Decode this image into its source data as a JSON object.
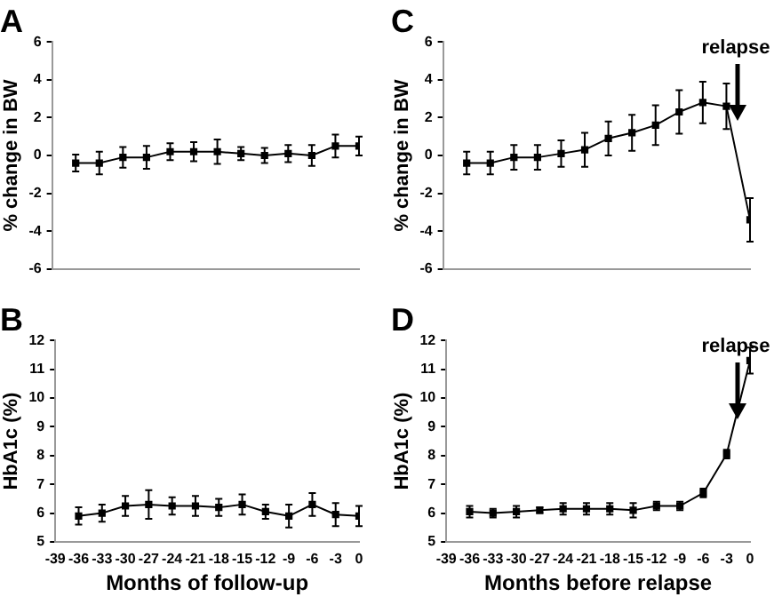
{
  "chart_data": [
    {
      "type": "line",
      "title": "A",
      "ylabel": "% change in BW",
      "x": [
        -36,
        -33,
        -30,
        -27,
        -24,
        -21,
        -18,
        -15,
        -12,
        -9,
        -6,
        -3,
        0
      ],
      "series": [
        {
          "color": "#000000",
          "values": [
            -0.4,
            -0.4,
            -0.1,
            -0.1,
            0.2,
            0.2,
            0.2,
            0.1,
            0,
            0.1,
            0,
            0.5,
            0.5
          ],
          "errors": [
            0.45,
            0.6,
            0.55,
            0.6,
            0.45,
            0.5,
            0.65,
            0.35,
            0.4,
            0.45,
            0.55,
            0.6,
            0.5
          ]
        }
      ],
      "xlim": [
        -39,
        0
      ],
      "xticks": [
        -39,
        -36,
        -33,
        -30,
        -27,
        -24,
        -21,
        -18,
        -15,
        -12,
        -9,
        -6,
        -3,
        0
      ],
      "ylim": [
        -6,
        6
      ],
      "yticks": [
        -6,
        -4,
        -2,
        0,
        2,
        4,
        6
      ],
      "tick_labels": "y",
      "marker": "square"
    },
    {
      "type": "line",
      "title": "C",
      "ylabel": "% change in BW",
      "x": [
        -36,
        -33,
        -30,
        -27,
        -24,
        -21,
        -18,
        -15,
        -12,
        -9,
        -6,
        -3,
        0
      ],
      "series": [
        {
          "color": "#000000",
          "values": [
            -0.4,
            -0.4,
            -0.1,
            -0.1,
            0.1,
            0.3,
            0.9,
            1.2,
            1.6,
            2.3,
            2.8,
            2.6,
            -3.4
          ],
          "errors": [
            0.6,
            0.6,
            0.65,
            0.65,
            0.7,
            0.9,
            0.9,
            0.95,
            1.05,
            1.15,
            1.1,
            1.2,
            1.15
          ]
        }
      ],
      "xlim": [
        -39,
        0
      ],
      "xticks": [
        -39,
        -36,
        -33,
        -30,
        -27,
        -24,
        -21,
        -18,
        -15,
        -12,
        -9,
        -6,
        -3,
        0
      ],
      "ylim": [
        -6,
        6
      ],
      "yticks": [
        -6,
        -4,
        -2,
        0,
        2,
        4,
        6
      ],
      "tick_labels": "y",
      "marker": "square",
      "annotations": [
        "relapse"
      ]
    },
    {
      "type": "line",
      "title": "B",
      "xlabel": "Months of follow-up",
      "ylabel": "HbA1c (%)",
      "x": [
        -36,
        -33,
        -30,
        -27,
        -24,
        -21,
        -18,
        -15,
        -12,
        -9,
        -6,
        -3,
        0
      ],
      "series": [
        {
          "color": "#000000",
          "values": [
            5.9,
            6.0,
            6.25,
            6.3,
            6.25,
            6.25,
            6.2,
            6.3,
            6.05,
            5.9,
            6.3,
            5.95,
            5.9
          ],
          "errors": [
            0.3,
            0.3,
            0.35,
            0.5,
            0.3,
            0.35,
            0.3,
            0.35,
            0.25,
            0.4,
            0.4,
            0.4,
            0.35
          ]
        }
      ],
      "xlim": [
        -39,
        0
      ],
      "xticks": [
        -39,
        -36,
        -33,
        -30,
        -27,
        -24,
        -21,
        -18,
        -15,
        -12,
        -9,
        -6,
        -3,
        0
      ],
      "ylim": [
        5,
        12
      ],
      "yticks": [
        5,
        6,
        7,
        8,
        9,
        10,
        11,
        12
      ],
      "marker": "square"
    },
    {
      "type": "line",
      "title": "D",
      "xlabel": "Months before relapse",
      "ylabel": "HbA1c (%)",
      "x": [
        -36,
        -33,
        -30,
        -27,
        -24,
        -21,
        -18,
        -15,
        -12,
        -9,
        -6,
        -3,
        0
      ],
      "series": [
        {
          "color": "#000000",
          "values": [
            6.05,
            6.0,
            6.05,
            6.1,
            6.15,
            6.15,
            6.15,
            6.1,
            6.25,
            6.25,
            6.7,
            8.05,
            11.3
          ],
          "errors": [
            0.2,
            0.15,
            0.2,
            0.1,
            0.2,
            0.2,
            0.2,
            0.25,
            0.15,
            0.15,
            0.15,
            0.15,
            0.45
          ]
        }
      ],
      "xlim": [
        -39,
        0
      ],
      "xticks": [
        -39,
        -36,
        -33,
        -30,
        -27,
        -24,
        -21,
        -18,
        -15,
        -12,
        -9,
        -6,
        -3,
        0
      ],
      "ylim": [
        5,
        12
      ],
      "yticks": [
        5,
        6,
        7,
        8,
        9,
        10,
        11,
        12
      ],
      "marker": "square",
      "annotations": [
        "relapse"
      ]
    }
  ]
}
